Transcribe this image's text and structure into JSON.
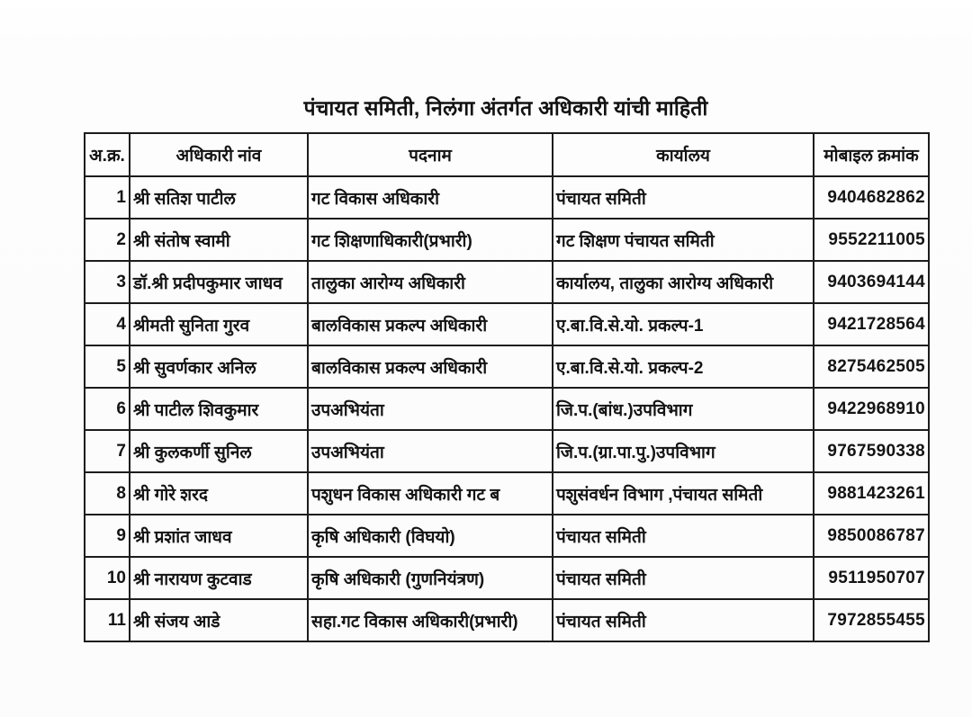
{
  "page": {
    "title": "पंचायत समिती, निलंगा अंतर्गत अधिकारी यांची माहिती"
  },
  "table": {
    "columns": [
      "अ.क्र.",
      "अधिकारी नांव",
      "पदनाम",
      "कार्यालय",
      "मोबाइल क्रमांक"
    ],
    "rows": [
      {
        "sr": "1",
        "name": "श्री सतिश पाटील",
        "designation": "गट विकास अधिकारी",
        "office": "पंचायत समिती",
        "mobile": "9404682862"
      },
      {
        "sr": "2",
        "name": "श्री संतोष स्वामी",
        "designation": "गट शिक्षणाधिकारी(प्रभारी)",
        "office": "गट शिक्षण पंचायत समिती",
        "mobile": "9552211005"
      },
      {
        "sr": "3",
        "name": "डॉ.श्री प्रदीपकुमार जाधव",
        "designation": "तालुका आरोग्य अधिकारी",
        "office": "कार्यालय, तालुका आरोग्य अधिकारी",
        "mobile": "9403694144"
      },
      {
        "sr": "4",
        "name": "श्रीमती सुनिता गुरव",
        "designation": "बालविकास प्रकल्प अधिकारी",
        "office": "ए.बा.वि.से.यो. प्रकल्प-1",
        "mobile": "9421728564"
      },
      {
        "sr": "5",
        "name": "श्री सुवर्णकार अनिल",
        "designation": "बालविकास प्रकल्प अधिकारी",
        "office": "ए.बा.वि.से.यो. प्रकल्प-2",
        "mobile": "8275462505"
      },
      {
        "sr": "6",
        "name": "श्री पाटील शिवकुमार",
        "designation": "उपअभियंता",
        "office": "जि.प.(बांध.)उपविभाग",
        "mobile": "9422968910"
      },
      {
        "sr": "7",
        "name": "श्री कुलकर्णी सुनिल",
        "designation": "उपअभियंता",
        "office": "जि.प.(ग्रा.पा.पु.)उपविभाग",
        "mobile": "9767590338"
      },
      {
        "sr": "8",
        "name": "श्री गोरे शरद",
        "designation": "पशुधन विकास अधिकारी गट ब",
        "office": "पशुसंवर्धन विभाग ,पंचायत समिती",
        "mobile": "9881423261"
      },
      {
        "sr": "9",
        "name": "श्री प्रशांत जाधव",
        "designation": "कृषि अधिकारी (विघयो)",
        "office": "पंचायत समिती",
        "mobile": "9850086787"
      },
      {
        "sr": "10",
        "name": "श्री नारायण कुटवाड",
        "designation": "कृषि अधिकारी (गुणनियंत्रण)",
        "office": "पंचायत समिती",
        "mobile": "9511950707"
      },
      {
        "sr": "11",
        "name": "श्री संजय आडे",
        "designation": "सहा.गट विकास अधिकारी(प्रभारी)",
        "office": "पंचायत समिती",
        "mobile": "7972855455"
      }
    ]
  },
  "colors": {
    "border": "#1c1c1c",
    "text": "#141414",
    "background": "#fcfcfc"
  }
}
